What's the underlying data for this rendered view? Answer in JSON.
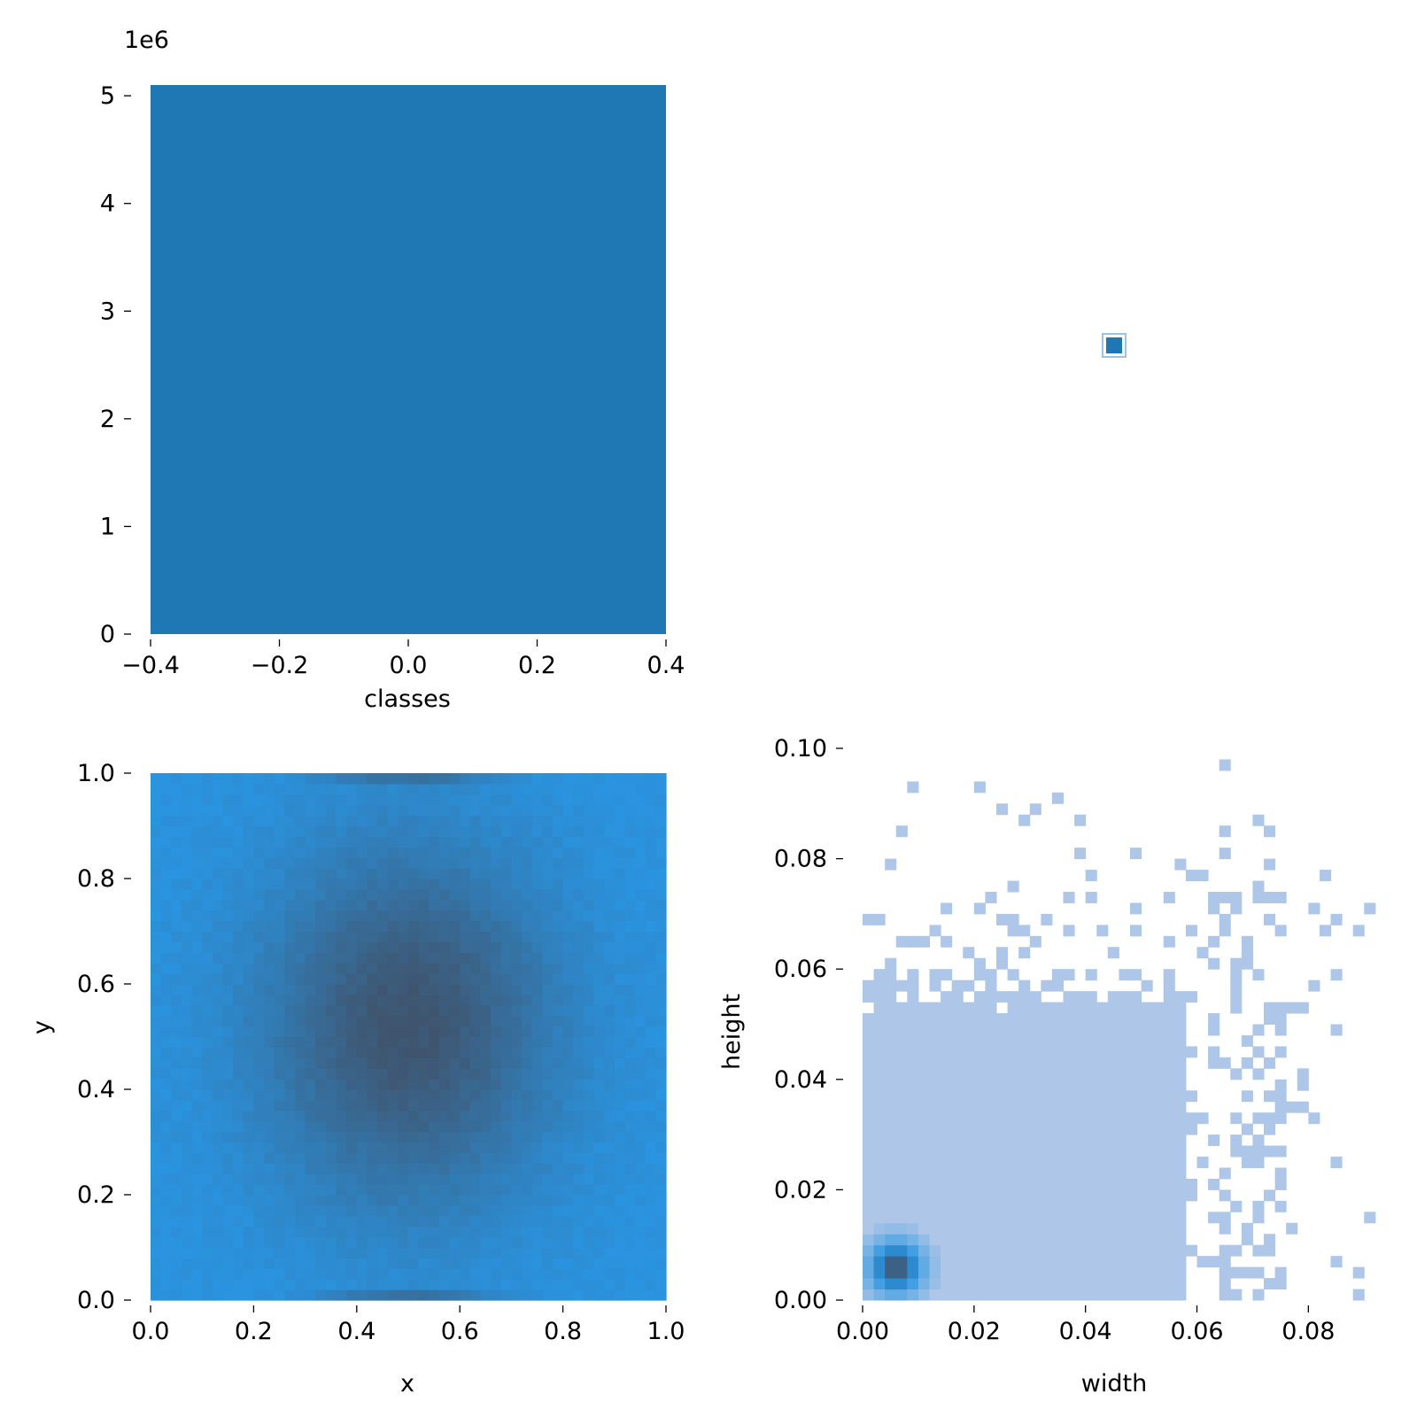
{
  "chart_data": [
    {
      "type": "histogram",
      "panel": "top-left",
      "xlabel": "classes",
      "ylabel": "",
      "offset_text": "1e6",
      "xlim": [
        -0.4,
        0.4
      ],
      "ylim": [
        0,
        5.1
      ],
      "x_ticks": [
        "−0.4",
        "−0.2",
        "0.0",
        "0.2",
        "0.4"
      ],
      "x_tick_values": [
        -0.4,
        -0.2,
        0.0,
        0.2,
        0.4
      ],
      "y_ticks": [
        "0",
        "1",
        "2",
        "3",
        "4",
        "5"
      ],
      "y_tick_values": [
        0,
        1,
        2,
        3,
        4,
        5
      ],
      "bars": [
        {
          "x0": -0.4,
          "x1": 0.4,
          "value": 5.1
        }
      ],
      "color": "#1f77b4"
    },
    {
      "type": "scatter",
      "panel": "top-right",
      "marker": "square",
      "color": "#1f77b4",
      "points": [
        {
          "x": 0.0,
          "y": 0.0
        }
      ]
    },
    {
      "type": "heatmap",
      "panel": "bottom-left",
      "xlabel": "x",
      "ylabel": "y",
      "xlim": [
        0.0,
        1.0
      ],
      "ylim": [
        0.0,
        1.0
      ],
      "x_ticks": [
        "0.0",
        "0.2",
        "0.4",
        "0.6",
        "0.8",
        "1.0"
      ],
      "x_tick_values": [
        0.0,
        0.2,
        0.4,
        0.6,
        0.8,
        1.0
      ],
      "y_ticks": [
        "0.0",
        "0.2",
        "0.4",
        "0.6",
        "0.8",
        "1.0"
      ],
      "y_tick_values": [
        0.0,
        0.2,
        0.4,
        0.6,
        0.8,
        1.0
      ],
      "bins": 50,
      "peak": {
        "x": 0.5,
        "y": 0.52
      },
      "colors": {
        "low": "#2a94e0",
        "high": "#3f556f"
      }
    },
    {
      "type": "heatmap",
      "panel": "bottom-right",
      "xlabel": "width",
      "ylabel": "height",
      "xlim": [
        0.0,
        0.0925
      ],
      "ylim": [
        0.0,
        0.1
      ],
      "x_ticks": [
        "0.00",
        "0.02",
        "0.04",
        "0.06",
        "0.08"
      ],
      "x_tick_values": [
        0.0,
        0.02,
        0.04,
        0.06,
        0.08
      ],
      "y_ticks": [
        "0.00",
        "0.02",
        "0.04",
        "0.06",
        "0.08",
        "0.10"
      ],
      "y_tick_values": [
        0.0,
        0.02,
        0.04,
        0.06,
        0.08,
        0.1
      ],
      "bin_size": 0.002,
      "dense_region": {
        "width_max": 0.058,
        "height_max": 0.06
      },
      "peak": {
        "x": 0.006,
        "y": 0.006
      },
      "colors": {
        "low": "#aec7e8",
        "mid": "#2a94e0",
        "high": "#3f556f"
      }
    }
  ]
}
